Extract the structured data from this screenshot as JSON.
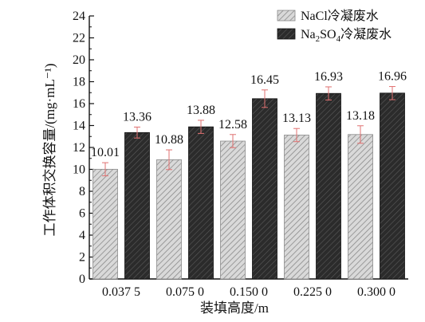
{
  "chart_data": {
    "type": "bar",
    "categories": [
      "0.037 5",
      "0.075 0",
      "0.150 0",
      "0.225 0",
      "0.300 0"
    ],
    "series": [
      {
        "name": "NaCl冷凝废水",
        "values": [
          10.01,
          10.88,
          12.58,
          13.13,
          13.18
        ],
        "errors": [
          0.6,
          0.9,
          0.6,
          0.6,
          0.8
        ],
        "labels": [
          "10.01",
          "10.88",
          "12.58",
          "13.13",
          "13.18"
        ],
        "fill": "#d9d9d9",
        "hatch": "#8a8a8a"
      },
      {
        "name": "Na2SO4冷凝废水",
        "name_parts": [
          "Na",
          "2",
          "SO",
          "4",
          "冷凝废水"
        ],
        "values": [
          13.36,
          13.88,
          16.45,
          16.93,
          16.96
        ],
        "errors": [
          0.5,
          0.6,
          0.8,
          0.6,
          0.6
        ],
        "labels": [
          "13.36",
          "13.88",
          "16.45",
          "16.93",
          "16.96"
        ],
        "fill": "#2b2b2b",
        "hatch": "#5a5a5a"
      }
    ],
    "xlabel": "装填高度/m",
    "ylabel": "工作体积交换容量/(mg·mL⁻¹)",
    "ylim": [
      0,
      24
    ],
    "yticks": [
      0,
      2,
      4,
      6,
      8,
      10,
      12,
      14,
      16,
      18,
      20,
      22,
      24
    ],
    "error_bar_color": "#e07070",
    "legend_position": "top-right",
    "grid": false
  }
}
